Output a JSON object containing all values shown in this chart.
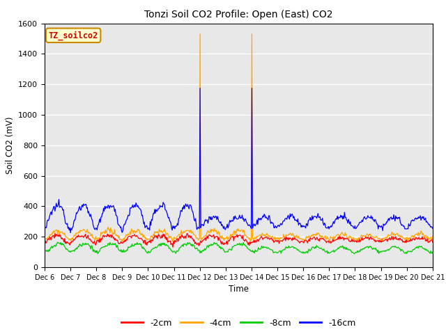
{
  "title": "Tonzi Soil CO2 Profile: Open (East) CO2",
  "ylabel": "Soil CO2 (mV)",
  "xlabel": "Time",
  "ylim": [
    0,
    1600
  ],
  "yticks": [
    0,
    200,
    400,
    600,
    800,
    1000,
    1200,
    1400,
    1600
  ],
  "fig_bg_color": "#ffffff",
  "plot_bg_color": "#e8e8e8",
  "series_colors": [
    "#ff0000",
    "#ffa500",
    "#00cc00",
    "#0000ff"
  ],
  "series_labels": [
    "-2cm",
    "-4cm",
    "-8cm",
    "-16cm"
  ],
  "watermark_text": "TZ_soilco2",
  "watermark_bg": "#ffffcc",
  "watermark_border": "#cc8800",
  "watermark_text_color": "#cc0000",
  "n_points": 600,
  "spike_index": 240,
  "spike_value_orange": 1530,
  "spike_value_blue": 1175,
  "x_start_day": 6,
  "x_end_day": 21,
  "x_tick_days": [
    6,
    7,
    8,
    9,
    10,
    11,
    12,
    13,
    14,
    15,
    16,
    17,
    18,
    19,
    20,
    21
  ],
  "grid_color": "#ffffff",
  "grid_lw": 1.0
}
